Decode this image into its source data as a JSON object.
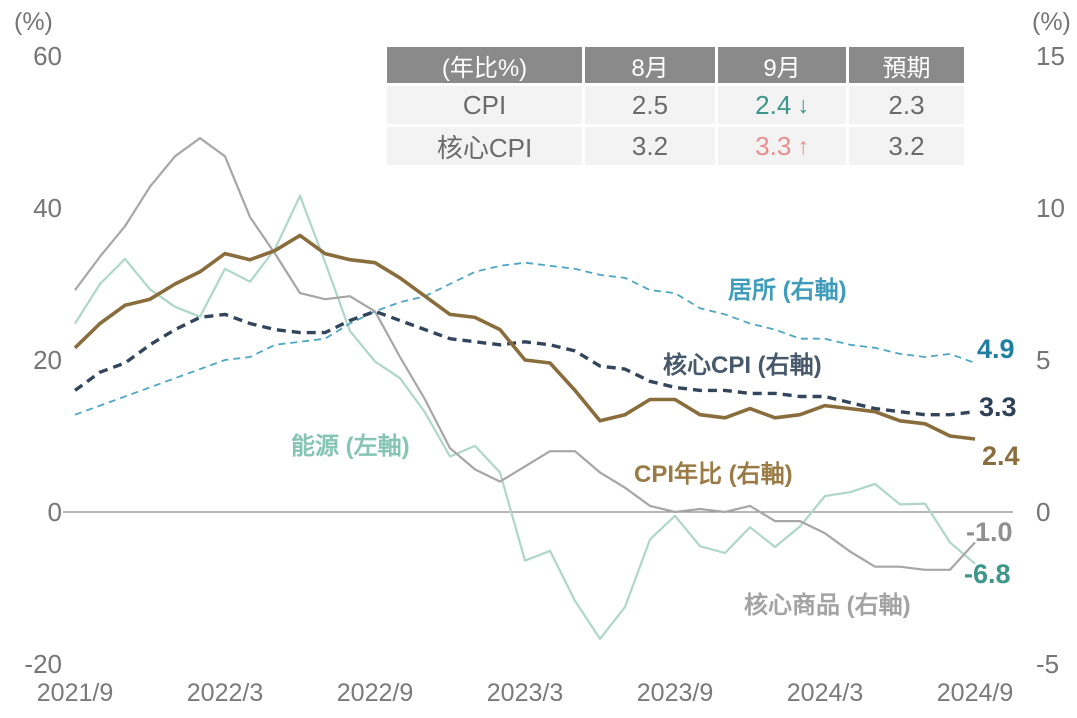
{
  "summary_table": {
    "header": [
      "(年比%)",
      "8月",
      "9月",
      "預期"
    ],
    "header_bg": "#8a8a8a",
    "row_bg": "#f3f3f3",
    "rows": [
      {
        "label": "CPI",
        "aug": "2.5",
        "sep": "2.4",
        "sep_arrow": "↓",
        "sep_color": "#3c9689",
        "forecast": "2.3"
      },
      {
        "label": "核心CPI",
        "aug": "3.2",
        "sep": "3.3",
        "sep_arrow": "↑",
        "sep_color": "#e88e8e",
        "forecast": "3.2"
      }
    ]
  },
  "annotations": [
    {
      "text": "居所 (右軸)",
      "color": "#3f9cba"
    },
    {
      "text": "核心CPI (右軸)",
      "color": "#47596b"
    },
    {
      "text": "能源 (左軸)",
      "color": "#85c5b2"
    },
    {
      "text": "CPI年比 (右軸)",
      "color": "#9a7b45"
    },
    {
      "text": "核心商品 (右軸)",
      "color": "#a3a3a3"
    }
  ],
  "end_labels": [
    {
      "text": "4.9",
      "color": "#1f7fa3"
    },
    {
      "text": "3.3",
      "color": "#2d4055"
    },
    {
      "text": "2.4",
      "color": "#8a6d3c"
    },
    {
      "text": "-1.0",
      "color": "#8f8f8f"
    },
    {
      "text": "-6.8",
      "color": "#3c9689"
    }
  ],
  "chart_data": {
    "type": "line",
    "x": [
      "2021/9",
      "2021/10",
      "2021/11",
      "2021/12",
      "2022/1",
      "2022/2",
      "2022/3",
      "2022/4",
      "2022/5",
      "2022/6",
      "2022/7",
      "2022/8",
      "2022/9",
      "2022/10",
      "2022/11",
      "2022/12",
      "2023/1",
      "2023/2",
      "2023/3",
      "2023/4",
      "2023/5",
      "2023/6",
      "2023/7",
      "2023/8",
      "2023/9",
      "2023/10",
      "2023/11",
      "2023/12",
      "2024/1",
      "2024/2",
      "2024/3",
      "2024/4",
      "2024/5",
      "2024/6",
      "2024/7",
      "2024/8",
      "2024/9"
    ],
    "x_tick_labels": [
      "2021/9",
      "2022/3",
      "2022/9",
      "2023/3",
      "2023/9",
      "2024/3",
      "2024/9"
    ],
    "left_axis": {
      "unit": "(%)",
      "range": [
        -20,
        60
      ],
      "ticks": [
        "60",
        "40",
        "20",
        "0",
        "-20"
      ]
    },
    "right_axis": {
      "unit": "(%)",
      "range": [
        -5,
        15
      ],
      "ticks": [
        "15",
        "10",
        "5",
        "0",
        "-5"
      ]
    },
    "grid": "zero-line-only",
    "legend_position": "inline-annotations",
    "series": [
      {
        "id": "energy",
        "name": "能源 (左軸)",
        "axis": "left",
        "style": "solid",
        "dash": null,
        "color": "#aed7c9",
        "width": 2.2,
        "values": [
          24.8,
          30.0,
          33.3,
          29.3,
          27.0,
          25.7,
          32.0,
          30.3,
          34.6,
          41.6,
          32.9,
          23.8,
          19.8,
          17.6,
          13.1,
          7.3,
          8.7,
          5.2,
          -6.4,
          -5.1,
          -11.7,
          -16.7,
          -12.5,
          -3.6,
          -0.5,
          -4.5,
          -5.4,
          -2.0,
          -4.6,
          -1.9,
          2.1,
          2.6,
          3.7,
          1.0,
          1.1,
          -4.0,
          -6.8
        ],
        "end_value": -6.8
      },
      {
        "id": "core-goods",
        "name": "核心商品 (右軸)",
        "axis": "right",
        "style": "solid",
        "dash": null,
        "color": "#a8a5a5",
        "width": 2.2,
        "values": [
          7.3,
          8.4,
          9.4,
          10.7,
          11.7,
          12.3,
          11.7,
          9.7,
          8.5,
          7.2,
          7.0,
          7.1,
          6.6,
          5.1,
          3.7,
          2.1,
          1.4,
          1.0,
          1.5,
          2.0,
          2.0,
          1.3,
          0.8,
          0.2,
          0.0,
          0.1,
          0.0,
          0.2,
          -0.3,
          -0.3,
          -0.7,
          -1.3,
          -1.8,
          -1.8,
          -1.9,
          -1.9,
          -1.0
        ],
        "end_value": -1.0
      },
      {
        "id": "shelter",
        "name": "居所 (右軸)",
        "axis": "right",
        "style": "dashed",
        "dash": "7 5",
        "color": "#4fa6c2",
        "width": 1.8,
        "values": [
          3.2,
          3.5,
          3.8,
          4.1,
          4.4,
          4.7,
          5.0,
          5.1,
          5.5,
          5.6,
          5.7,
          6.2,
          6.6,
          6.9,
          7.1,
          7.5,
          7.9,
          8.1,
          8.2,
          8.1,
          8.0,
          7.8,
          7.7,
          7.3,
          7.2,
          6.7,
          6.5,
          6.2,
          6.0,
          5.7,
          5.7,
          5.5,
          5.4,
          5.2,
          5.1,
          5.2,
          4.9
        ],
        "end_value": 4.9
      },
      {
        "id": "core-cpi",
        "name": "核心CPI (右軸)",
        "axis": "right",
        "style": "dashed",
        "dash": "9 6",
        "color": "#32455a",
        "width": 3.4,
        "values": [
          4.0,
          4.6,
          4.9,
          5.5,
          6.0,
          6.4,
          6.5,
          6.2,
          6.0,
          5.9,
          5.9,
          6.3,
          6.6,
          6.3,
          6.0,
          5.7,
          5.6,
          5.5,
          5.6,
          5.5,
          5.3,
          4.8,
          4.7,
          4.3,
          4.1,
          4.0,
          4.0,
          3.9,
          3.9,
          3.8,
          3.8,
          3.6,
          3.4,
          3.3,
          3.2,
          3.2,
          3.3
        ],
        "end_value": 3.3
      },
      {
        "id": "cpi",
        "name": "CPI年比 (右軸)",
        "axis": "right",
        "style": "solid",
        "dash": null,
        "color": "#8a6d3c",
        "width": 3.6,
        "values": [
          5.4,
          6.2,
          6.8,
          7.0,
          7.5,
          7.9,
          8.5,
          8.3,
          8.6,
          9.1,
          8.5,
          8.3,
          8.2,
          7.7,
          7.1,
          6.5,
          6.4,
          6.0,
          5.0,
          4.9,
          4.0,
          3.0,
          3.2,
          3.7,
          3.7,
          3.2,
          3.1,
          3.4,
          3.1,
          3.2,
          3.5,
          3.4,
          3.3,
          3.0,
          2.9,
          2.5,
          2.4
        ],
        "end_value": 2.4
      }
    ],
    "zero_line_color": "#8c8c8c"
  }
}
